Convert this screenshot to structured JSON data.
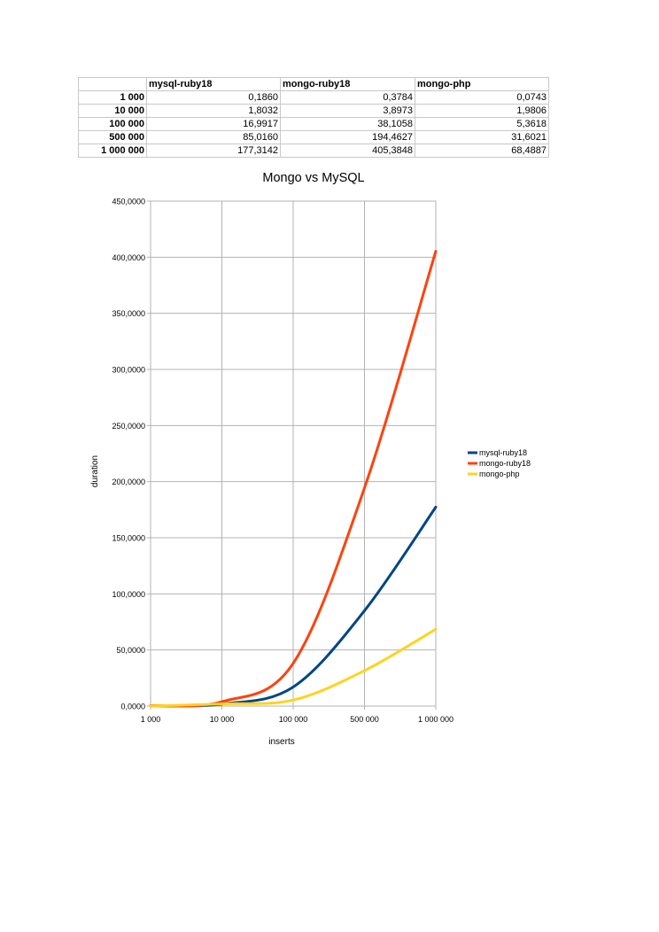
{
  "table": {
    "headers": [
      "",
      "mysql-ruby18",
      "mongo-ruby18",
      "mongo-php"
    ],
    "rows": [
      [
        "1 000",
        "0,1860",
        "0,3784",
        "0,0743"
      ],
      [
        "10 000",
        "1,8032",
        "3,8973",
        "1,9806"
      ],
      [
        "100 000",
        "16,9917",
        "38,1058",
        "5,3618"
      ],
      [
        "500 000",
        "85,0160",
        "194,4627",
        "31,6021"
      ],
      [
        "1 000 000",
        "177,3142",
        "405,3848",
        "68,4887"
      ]
    ]
  },
  "chart_data": {
    "type": "line",
    "title": "Mongo vs MySQL",
    "xlabel": "inserts",
    "ylabel": "duration",
    "categories": [
      "1 000",
      "10 000",
      "100 000",
      "500 000",
      "1 000 000"
    ],
    "ylim": [
      0,
      450
    ],
    "yticks": [
      0,
      50,
      100,
      150,
      200,
      250,
      300,
      350,
      400,
      450
    ],
    "ytick_labels": [
      "0,0000",
      "50,0000",
      "100,0000",
      "150,0000",
      "200,0000",
      "250,0000",
      "300,0000",
      "350,0000",
      "400,0000",
      "450,0000"
    ],
    "grid": true,
    "legend_position": "right",
    "smooth": true,
    "series": [
      {
        "name": "mysql-ruby18",
        "color": "#004586",
        "values": [
          0.186,
          1.8032,
          16.9917,
          85.016,
          177.3142
        ]
      },
      {
        "name": "mongo-ruby18",
        "color": "#ff420e",
        "values": [
          0.3784,
          3.8973,
          38.1058,
          194.4627,
          405.3848
        ]
      },
      {
        "name": "mongo-php",
        "color": "#ffd320",
        "values": [
          0.0743,
          1.9806,
          5.3618,
          31.6021,
          68.4887
        ]
      }
    ]
  }
}
